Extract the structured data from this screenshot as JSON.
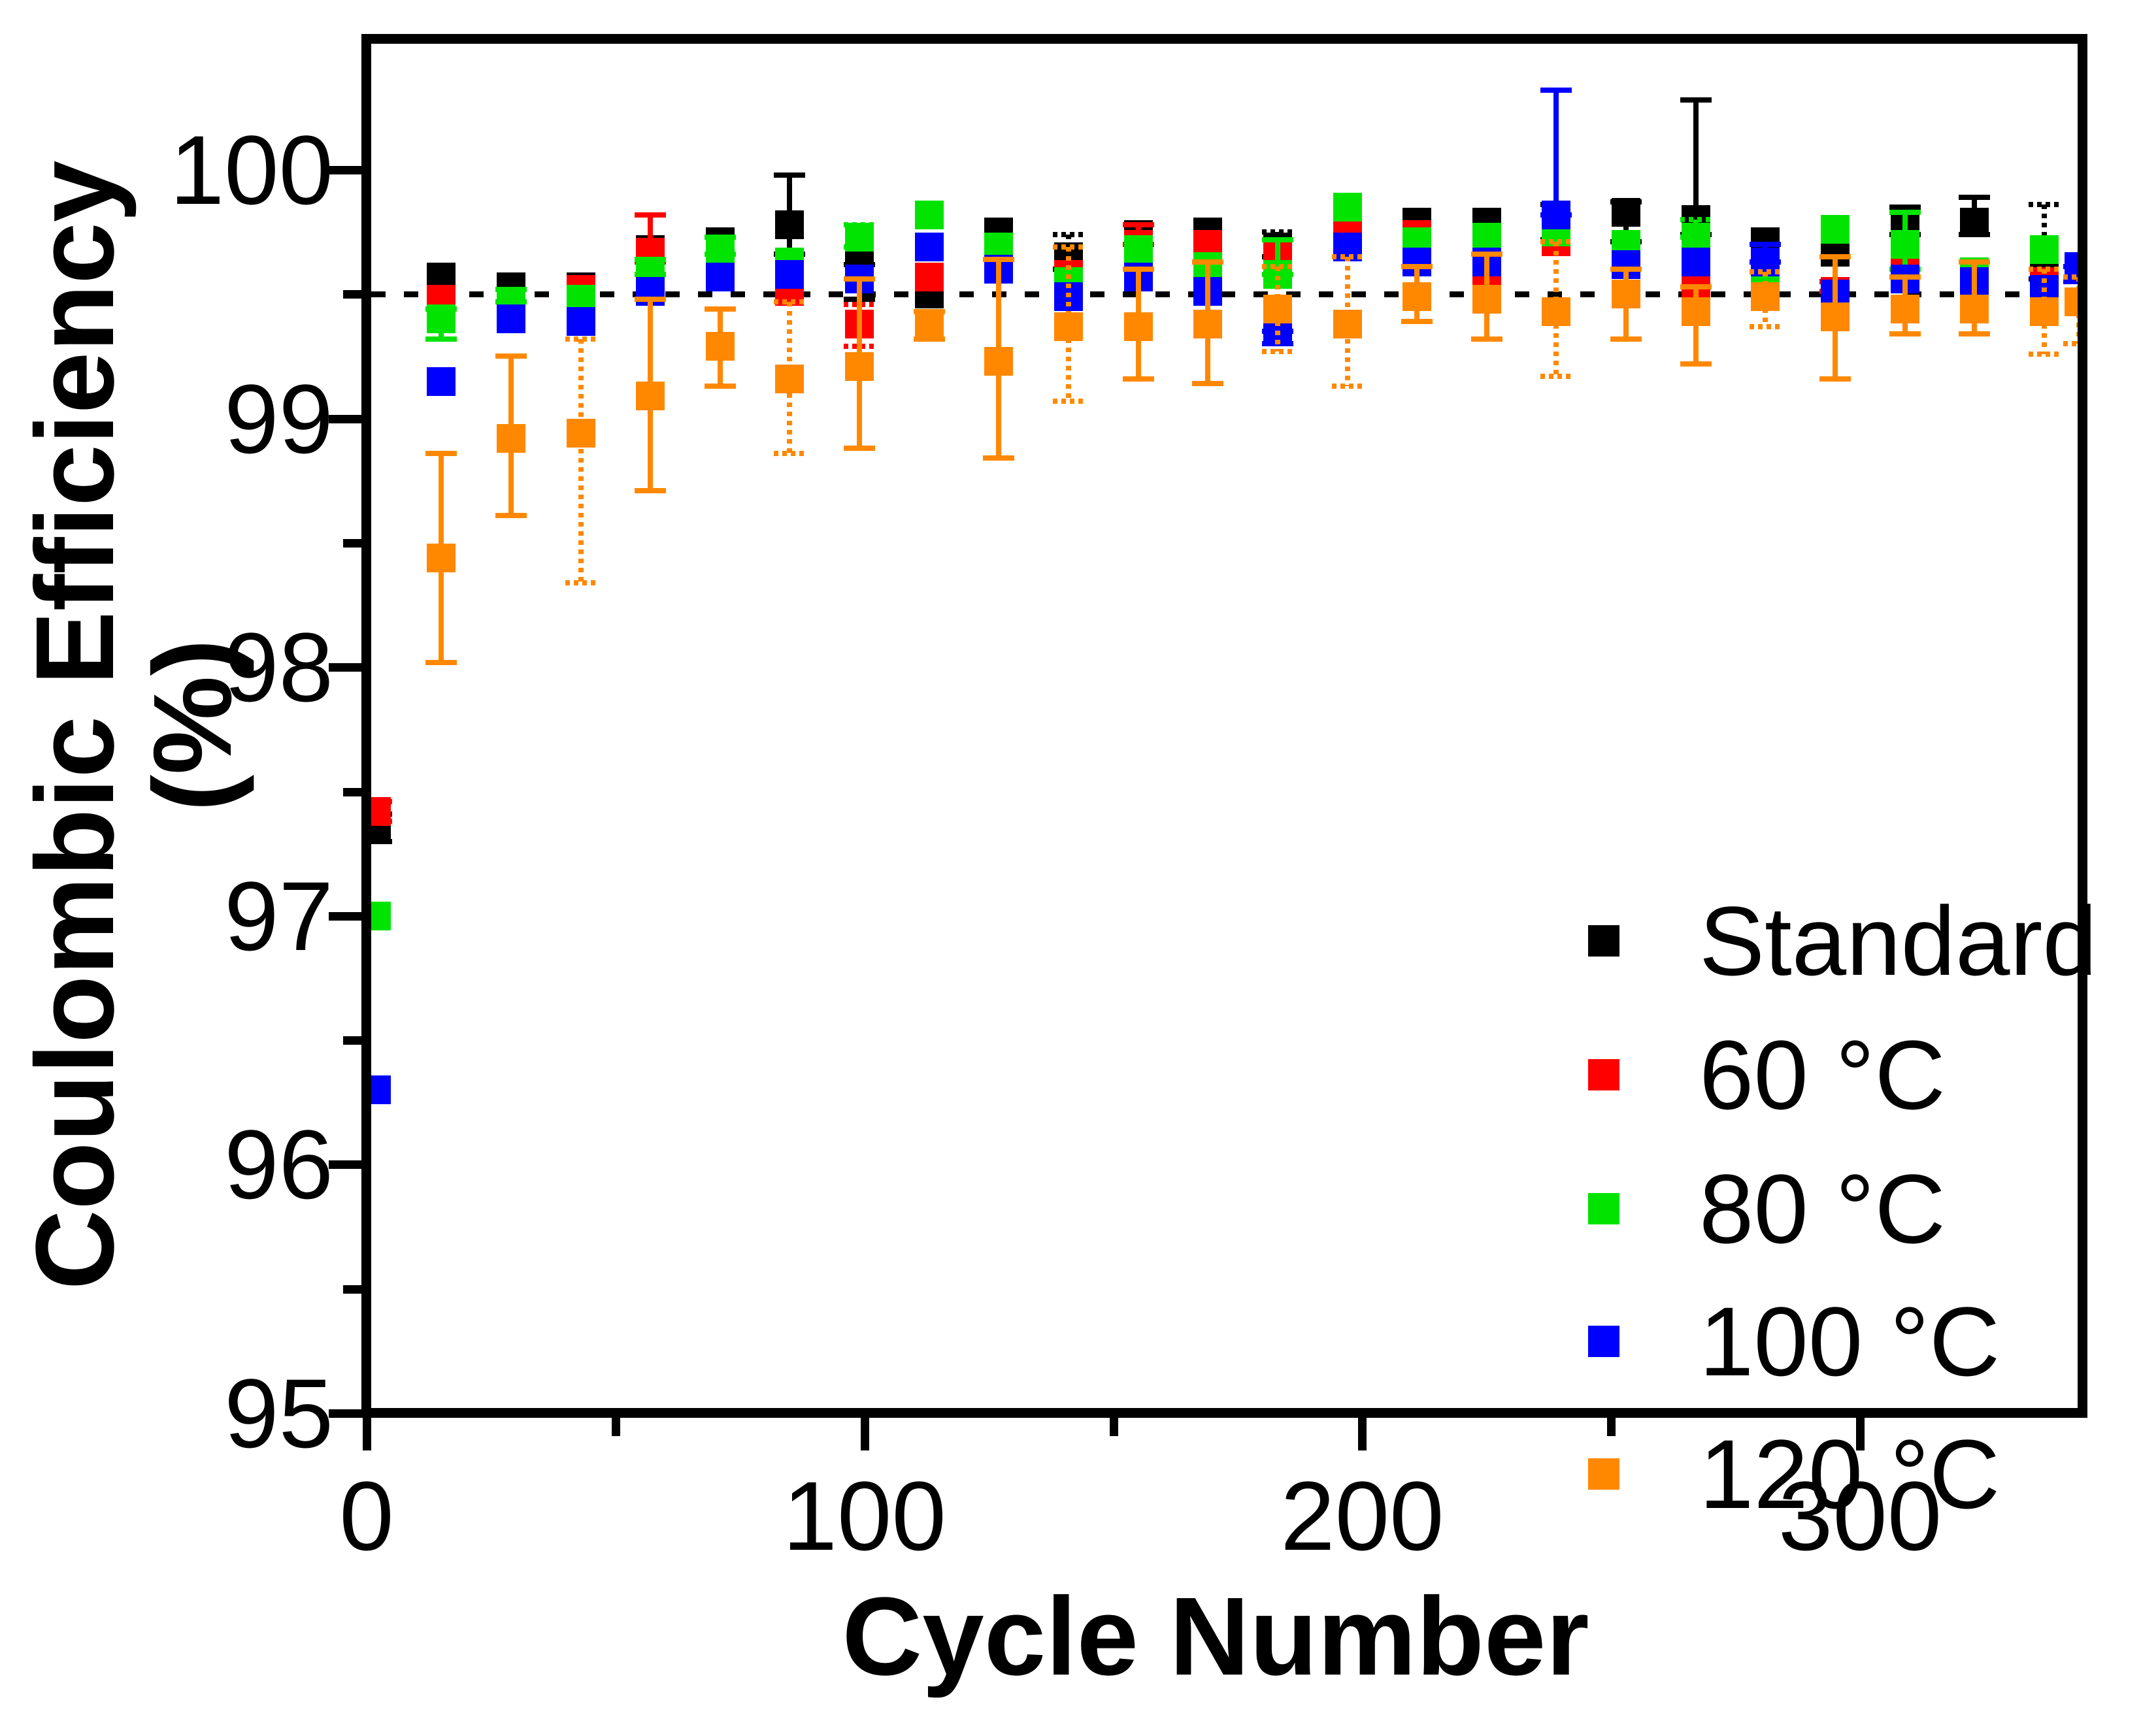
{
  "figure": {
    "background": "#ffffff",
    "y_title": "Coulombic Efficiency (%)",
    "x_title": "Cycle Number"
  },
  "legend": {
    "items": [
      {
        "label": "Standard",
        "color": "#000000"
      },
      {
        "label": "60 °C",
        "color": "#ff0000"
      },
      {
        "label": "80 °C",
        "color": "#00e400"
      },
      {
        "label": "100 °C",
        "color": "#0000ff"
      },
      {
        "label": "120 °C",
        "color": "#ff8800"
      }
    ]
  },
  "chart_data": {
    "type": "scatter",
    "title": "",
    "xlabel": "Cycle Number",
    "ylabel": "Coulombic Efficiency (%)",
    "xlim": [
      0,
      345
    ],
    "ylim": [
      95,
      100.53
    ],
    "x_major_ticks": [
      0,
      100,
      200,
      300
    ],
    "x_minor_ticks": [
      50,
      150,
      250
    ],
    "y_major_ticks": [
      95,
      96,
      97,
      98,
      99,
      100
    ],
    "y_minor_ticks": [
      95.5,
      96.5,
      97.5,
      98.5,
      99.5
    ],
    "grid": false,
    "legend_position": "lower right inside",
    "reference_line": {
      "y": 99.5,
      "style": "dashed",
      "color": "#000000"
    },
    "marker": "square",
    "series": [
      {
        "name": "Standard",
        "color": "#000000",
        "points": [
          [
            2,
            97.36,
            0.05,
            0.06,
            0
          ],
          [
            15,
            99.57,
            0,
            0,
            0
          ],
          [
            29,
            99.53,
            0,
            0,
            0
          ],
          [
            43,
            99.53,
            0,
            0,
            0
          ],
          [
            57,
            99.68,
            0,
            0,
            0
          ],
          [
            71,
            99.71,
            0,
            0,
            0
          ],
          [
            85,
            99.78,
            0.2,
            0.12,
            0
          ],
          [
            99,
            99.62,
            0,
            0.14,
            0
          ],
          [
            113,
            99.5,
            0,
            0,
            0
          ],
          [
            127,
            99.75,
            0,
            0,
            0
          ],
          [
            141,
            99.65,
            0.09,
            0.05,
            1
          ],
          [
            155,
            99.74,
            0,
            0,
            0
          ],
          [
            169,
            99.75,
            0,
            0,
            0
          ],
          [
            183,
            99.69,
            0.06,
            0.04,
            1
          ],
          [
            197,
            99.78,
            0,
            0,
            0
          ],
          [
            211,
            99.79,
            0,
            0,
            0
          ],
          [
            225,
            99.79,
            0,
            0,
            0
          ],
          [
            239,
            99.72,
            0.14,
            0,
            1
          ],
          [
            253,
            99.83,
            0.04,
            0.12,
            0
          ],
          [
            267,
            99.8,
            0.48,
            0.06,
            0
          ],
          [
            281,
            99.71,
            0,
            0,
            0
          ],
          [
            295,
            99.67,
            0,
            0,
            0
          ],
          [
            309,
            99.79,
            0.06,
            0.05,
            0
          ],
          [
            323,
            99.79,
            0.1,
            0.05,
            0
          ],
          [
            337,
            99.61,
            0.25,
            0.05,
            1
          ]
        ]
      },
      {
        "name": "60 °C",
        "color": "#ff0000",
        "points": [
          [
            2,
            97.42,
            0.04,
            0.04,
            0
          ],
          [
            15,
            99.48,
            0,
            0,
            0
          ],
          [
            29,
            99.45,
            0,
            0,
            0
          ],
          [
            43,
            99.52,
            0,
            0,
            0
          ],
          [
            57,
            99.67,
            0.15,
            0.04,
            0
          ],
          [
            71,
            99.58,
            0,
            0,
            0
          ],
          [
            85,
            99.51,
            0,
            0,
            0
          ],
          [
            99,
            99.38,
            0.08,
            0.09,
            1
          ],
          [
            113,
            99.57,
            0,
            0,
            0
          ],
          [
            127,
            99.61,
            0,
            0,
            0
          ],
          [
            141,
            99.58,
            0,
            0,
            0
          ],
          [
            155,
            99.7,
            0.08,
            0,
            0
          ],
          [
            169,
            99.7,
            0,
            0,
            0
          ],
          [
            183,
            99.66,
            0,
            0,
            0
          ],
          [
            197,
            99.77,
            0,
            0,
            0
          ],
          [
            211,
            99.74,
            0,
            0,
            0
          ],
          [
            225,
            99.56,
            0,
            0,
            0
          ],
          [
            239,
            99.71,
            0,
            0,
            0
          ],
          [
            253,
            99.63,
            0,
            0,
            0
          ],
          [
            267,
            99.54,
            0,
            0,
            0
          ],
          [
            281,
            99.53,
            0,
            0,
            0
          ],
          [
            295,
            99.51,
            0.04,
            0,
            1
          ],
          [
            309,
            99.63,
            0,
            0,
            0
          ],
          [
            323,
            99.56,
            0,
            0,
            0
          ],
          [
            337,
            99.55,
            0,
            0,
            0
          ]
        ]
      },
      {
        "name": "80 °C",
        "color": "#00e400",
        "points": [
          [
            2,
            97.0,
            0,
            0,
            0
          ],
          [
            15,
            99.4,
            0.04,
            0.08,
            0
          ],
          [
            29,
            99.47,
            0.05,
            0,
            0
          ],
          [
            43,
            99.48,
            0,
            0,
            0
          ],
          [
            57,
            99.58,
            0.06,
            0,
            0
          ],
          [
            71,
            99.66,
            0.07,
            0,
            0
          ],
          [
            85,
            99.63,
            0,
            0,
            0
          ],
          [
            99,
            99.73,
            0.05,
            0.04,
            1
          ],
          [
            113,
            99.82,
            0,
            0,
            0
          ],
          [
            127,
            99.69,
            0,
            0,
            0
          ],
          [
            141,
            99.55,
            0,
            0,
            0
          ],
          [
            155,
            99.68,
            0,
            0,
            0
          ],
          [
            169,
            99.61,
            0,
            0,
            0
          ],
          [
            183,
            99.58,
            0.14,
            0,
            0
          ],
          [
            197,
            99.85,
            0,
            0,
            0
          ],
          [
            211,
            99.71,
            0,
            0,
            0
          ],
          [
            225,
            99.73,
            0,
            0,
            0
          ],
          [
            239,
            99.75,
            0,
            0,
            0
          ],
          [
            253,
            99.7,
            0,
            0,
            0
          ],
          [
            267,
            99.73,
            0.07,
            0,
            1
          ],
          [
            281,
            99.55,
            0,
            0,
            0
          ],
          [
            295,
            99.76,
            0,
            0,
            0
          ],
          [
            309,
            99.7,
            0.13,
            0.1,
            0
          ],
          [
            323,
            99.59,
            0,
            0,
            0
          ],
          [
            337,
            99.68,
            0,
            0,
            0
          ]
        ]
      },
      {
        "name": "100 °C",
        "color": "#0000ff",
        "points": [
          [
            2,
            96.3,
            0,
            0,
            0
          ],
          [
            15,
            99.15,
            0,
            0,
            0
          ],
          [
            29,
            99.4,
            0,
            0,
            0
          ],
          [
            43,
            99.39,
            0,
            0,
            0
          ],
          [
            57,
            99.51,
            0,
            0,
            0
          ],
          [
            71,
            99.57,
            0,
            0,
            0
          ],
          [
            85,
            99.58,
            0,
            0,
            0
          ],
          [
            99,
            99.56,
            0,
            0,
            0
          ],
          [
            113,
            99.69,
            0,
            0,
            0
          ],
          [
            127,
            99.6,
            0,
            0,
            0
          ],
          [
            141,
            99.49,
            0,
            0,
            0
          ],
          [
            155,
            99.57,
            0,
            0,
            0
          ],
          [
            169,
            99.51,
            0,
            0,
            0
          ],
          [
            183,
            99.35,
            0,
            0.05,
            0
          ],
          [
            197,
            99.69,
            0,
            0,
            0
          ],
          [
            211,
            99.63,
            0,
            0,
            0
          ],
          [
            225,
            99.63,
            0,
            0,
            0
          ],
          [
            239,
            99.82,
            0.5,
            0,
            0
          ],
          [
            253,
            99.62,
            0,
            0,
            0
          ],
          [
            267,
            99.63,
            0,
            0,
            0
          ],
          [
            281,
            99.63,
            0.07,
            0,
            0
          ],
          [
            295,
            99.5,
            0,
            0,
            0
          ],
          [
            309,
            99.56,
            0,
            0,
            0
          ],
          [
            323,
            99.55,
            0,
            0,
            0
          ],
          [
            337,
            99.52,
            0,
            0,
            0
          ],
          [
            344,
            99.61,
            0,
            0.06,
            0
          ]
        ]
      },
      {
        "name": "120 °C",
        "color": "#ff8800",
        "points": [
          [
            15,
            98.44,
            0.42,
            0.42,
            0
          ],
          [
            29,
            98.92,
            0.33,
            0.31,
            0
          ],
          [
            43,
            98.94,
            0.38,
            0.6,
            1
          ],
          [
            57,
            99.09,
            0.39,
            0.38,
            0
          ],
          [
            71,
            99.29,
            0.15,
            0.16,
            0
          ],
          [
            85,
            99.16,
            0.31,
            0.3,
            1
          ],
          [
            99,
            99.21,
            0.35,
            0.33,
            0
          ],
          [
            113,
            99.37,
            0.06,
            0.05,
            0
          ],
          [
            127,
            99.23,
            0.41,
            0.39,
            0
          ],
          [
            141,
            99.37,
            0.32,
            0.3,
            1
          ],
          [
            155,
            99.37,
            0.23,
            0.21,
            0
          ],
          [
            169,
            99.38,
            0.25,
            0.24,
            0
          ],
          [
            183,
            99.44,
            0.17,
            0.17,
            1
          ],
          [
            197,
            99.38,
            0.27,
            0.25,
            1
          ],
          [
            211,
            99.49,
            0.12,
            0.1,
            0
          ],
          [
            225,
            99.48,
            0.18,
            0.16,
            0
          ],
          [
            239,
            99.43,
            0.28,
            0.26,
            1
          ],
          [
            253,
            99.5,
            0.1,
            0.18,
            0
          ],
          [
            267,
            99.43,
            0.1,
            0.21,
            0
          ],
          [
            281,
            99.49,
            0.1,
            0.12,
            1
          ],
          [
            295,
            99.41,
            0.24,
            0.25,
            0
          ],
          [
            309,
            99.44,
            0.13,
            0.1,
            0
          ],
          [
            323,
            99.44,
            0.19,
            0.1,
            0
          ],
          [
            337,
            99.43,
            0.17,
            0.17,
            1
          ],
          [
            344,
            99.47,
            0.1,
            0.17,
            1
          ]
        ]
      }
    ]
  }
}
